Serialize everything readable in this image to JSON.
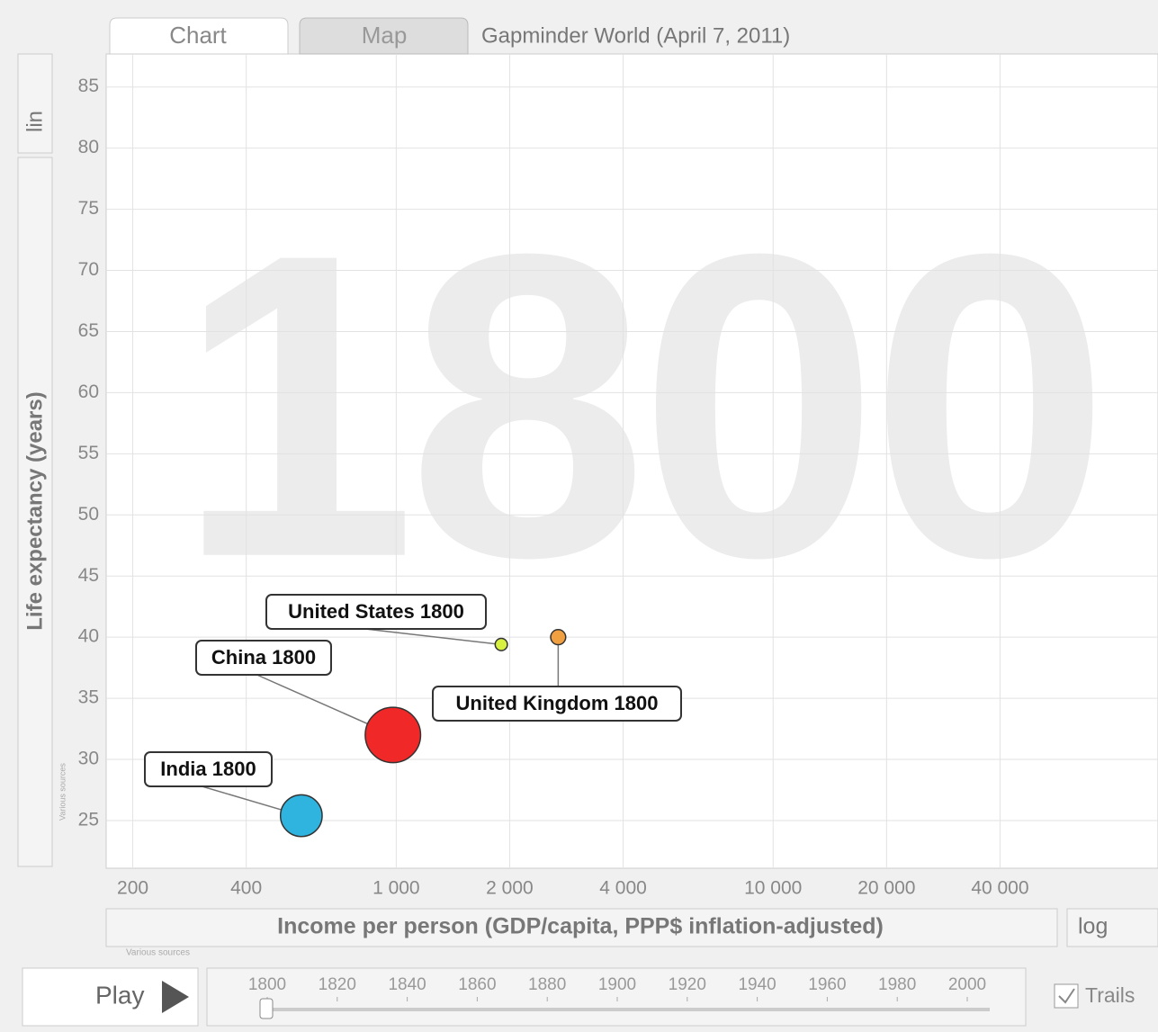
{
  "tabs": [
    "Chart",
    "Map"
  ],
  "page_title": "Gapminder World (April 7, 2011)",
  "y_scale": "lin",
  "x_scale": "log",
  "source": "Various sources",
  "controls": {
    "play": "Play",
    "trails": "Trails",
    "years": [
      1800,
      1820,
      1840,
      1860,
      1880,
      1900,
      1920,
      1940,
      1960,
      1980,
      2000
    ]
  },
  "chart_data": {
    "type": "scatter",
    "watermark": "1800",
    "x_label": "Income per person (GDP/capita, PPP$ inflation-adjusted)",
    "y_label": "Life expectancy (years)",
    "xlog": true,
    "grid": true,
    "xlim": [
      170,
      105000
    ],
    "ylim": [
      21.1,
      87.7
    ],
    "xticks": [
      200,
      400,
      {
        "value": 1000,
        "label": "1 000"
      },
      {
        "value": 2000,
        "label": "2 000"
      },
      {
        "value": 4000,
        "label": "4 000"
      },
      {
        "value": 10000,
        "label": "10 000"
      },
      {
        "value": 20000,
        "label": "20 000"
      },
      {
        "value": 40000,
        "label": "40 000"
      }
    ],
    "yticks": [
      25,
      30,
      35,
      40,
      45,
      50,
      55,
      60,
      65,
      70,
      75,
      80,
      85
    ],
    "names": [
      "India",
      "China",
      "United States",
      "United Kingdom"
    ],
    "labels": [
      "India 1800",
      "China 1800",
      "United States 1800",
      "United Kingdom 1800"
    ],
    "x": [
      560,
      980,
      1900,
      2690
    ],
    "values": [
      25.4,
      32.0,
      39.4,
      40.0
    ],
    "sizes": [
      169,
      321,
      6,
      12
    ],
    "colors": [
      "#2fb4e0",
      "#f02828",
      "#d8f040",
      "#f0a040"
    ]
  }
}
